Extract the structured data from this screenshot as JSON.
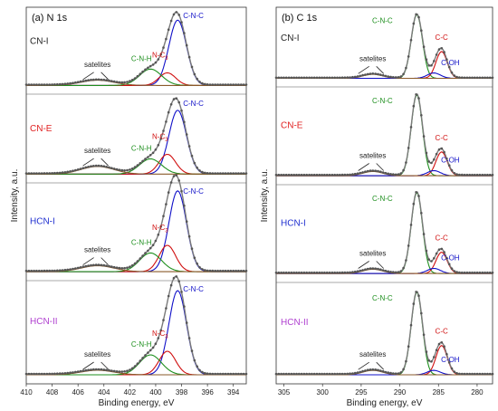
{
  "chart_data": [
    {
      "panel": "(a) N 1s",
      "type": "line",
      "ylabel": "Intensity, a.u.",
      "xlabel": "Binding energy, eV",
      "xlim": [
        410,
        393
      ],
      "xticks": [
        410,
        408,
        406,
        404,
        402,
        400,
        398,
        396,
        394
      ],
      "grid": false,
      "peaks": [
        {
          "label": "C-N-C",
          "position": 398.3,
          "fwhm": 1.6,
          "color": "#1010c8"
        },
        {
          "label": "N-C3",
          "position": 399.1,
          "fwhm": 1.5,
          "color": "#d01010"
        },
        {
          "label": "C-N-H",
          "position": 400.4,
          "fwhm": 2.0,
          "color": "#1e8f1e"
        },
        {
          "label": "satelites",
          "position": 404.5,
          "fwhm": 3.0,
          "color": "#8a5a2a"
        }
      ],
      "samples": [
        {
          "name": "CN-I",
          "name_color": "#222222",
          "heights": {
            "C-N-C": 0.88,
            "N-C3": 0.17,
            "C-N-H": 0.22,
            "satelites": 0.07
          },
          "labels": {
            "C-N-C": "C-N-C",
            "N-C3": "N-C3",
            "C-N-H": "C-N-H",
            "satelites": "satelites"
          }
        },
        {
          "name": "CN-E",
          "name_color": "#e02020",
          "heights": {
            "C-N-C": 0.84,
            "N-C3": 0.26,
            "C-N-H": 0.2,
            "satelites": 0.1
          },
          "labels": {
            "C-N-C": "C-N-C",
            "N-C3": "N-C3",
            "C-N-H": "C-N-H",
            "satelites": "satelites"
          }
        },
        {
          "name": "HCN-I",
          "name_color": "#2030d0",
          "heights": {
            "C-N-C": 0.95,
            "N-C3": 0.31,
            "C-N-H": 0.22,
            "satelites": 0.07
          },
          "labels": {
            "C-N-C": "C-N-C",
            "N-C3": "N-C3",
            "C-N-H": "C-N-H",
            "satelites": "satelites"
          }
        },
        {
          "name": "HCN-II",
          "name_color": "#b040d0",
          "heights": {
            "C-N-C": 0.93,
            "N-C3": 0.26,
            "C-N-H": 0.22,
            "satelites": 0.05
          },
          "labels": {
            "C-N-C": "C-N-C",
            "N-C3": "N-C3",
            "C-N-H": "C-N-H",
            "satelites": "satelites"
          }
        }
      ]
    },
    {
      "panel": "(b) C 1s",
      "type": "line",
      "ylabel": "Intensity, a.u.",
      "xlabel": "Binding energy, eV",
      "xlim": [
        306,
        278
      ],
      "xticks": [
        305,
        300,
        295,
        290,
        285,
        280
      ],
      "grid": false,
      "peaks": [
        {
          "label": "C-N-C",
          "position": 287.8,
          "fwhm": 1.7,
          "color": "#1e8f1e"
        },
        {
          "label": "C-C",
          "position": 284.6,
          "fwhm": 1.7,
          "color": "#d01010"
        },
        {
          "label": "C-OH",
          "position": 285.6,
          "fwhm": 2.0,
          "color": "#1010c8"
        },
        {
          "label": "satelites",
          "position": 293.5,
          "fwhm": 3.0,
          "color": "#8a5a2a"
        }
      ],
      "samples": [
        {
          "name": "CN-I",
          "name_color": "#222222",
          "heights": {
            "C-N-C": 0.95,
            "C-C": 0.4,
            "C-OH": 0.08,
            "satelites": 0.06
          },
          "labels": {
            "C-N-C": "C-N-C",
            "C-C": "C-C",
            "C-OH": "C-OH",
            "satelites": "satelites"
          }
        },
        {
          "name": "CN-E",
          "name_color": "#e02020",
          "heights": {
            "C-N-C": 0.95,
            "C-C": 0.28,
            "C-OH": 0.06,
            "satelites": 0.05
          },
          "labels": {
            "C-N-C": "C-N-C",
            "C-C": "C-C",
            "C-OH": "C-OH",
            "satelites": "satelites"
          }
        },
        {
          "name": "HCN-I",
          "name_color": "#2030d0",
          "heights": {
            "C-N-C": 0.95,
            "C-C": 0.25,
            "C-OH": 0.06,
            "satelites": 0.05
          },
          "labels": {
            "C-N-C": "C-N-C",
            "C-C": "C-C",
            "C-OH": "C-OH",
            "satelites": "satelites"
          }
        },
        {
          "name": "HCN-II",
          "name_color": "#b040d0",
          "heights": {
            "C-N-C": 0.93,
            "C-C": 0.33,
            "C-OH": 0.05,
            "satelites": 0.05
          },
          "labels": {
            "C-N-C": "C-N-C",
            "C-C": "C-C",
            "C-OH": "C-OH",
            "satelites": "satelites"
          }
        }
      ]
    }
  ]
}
